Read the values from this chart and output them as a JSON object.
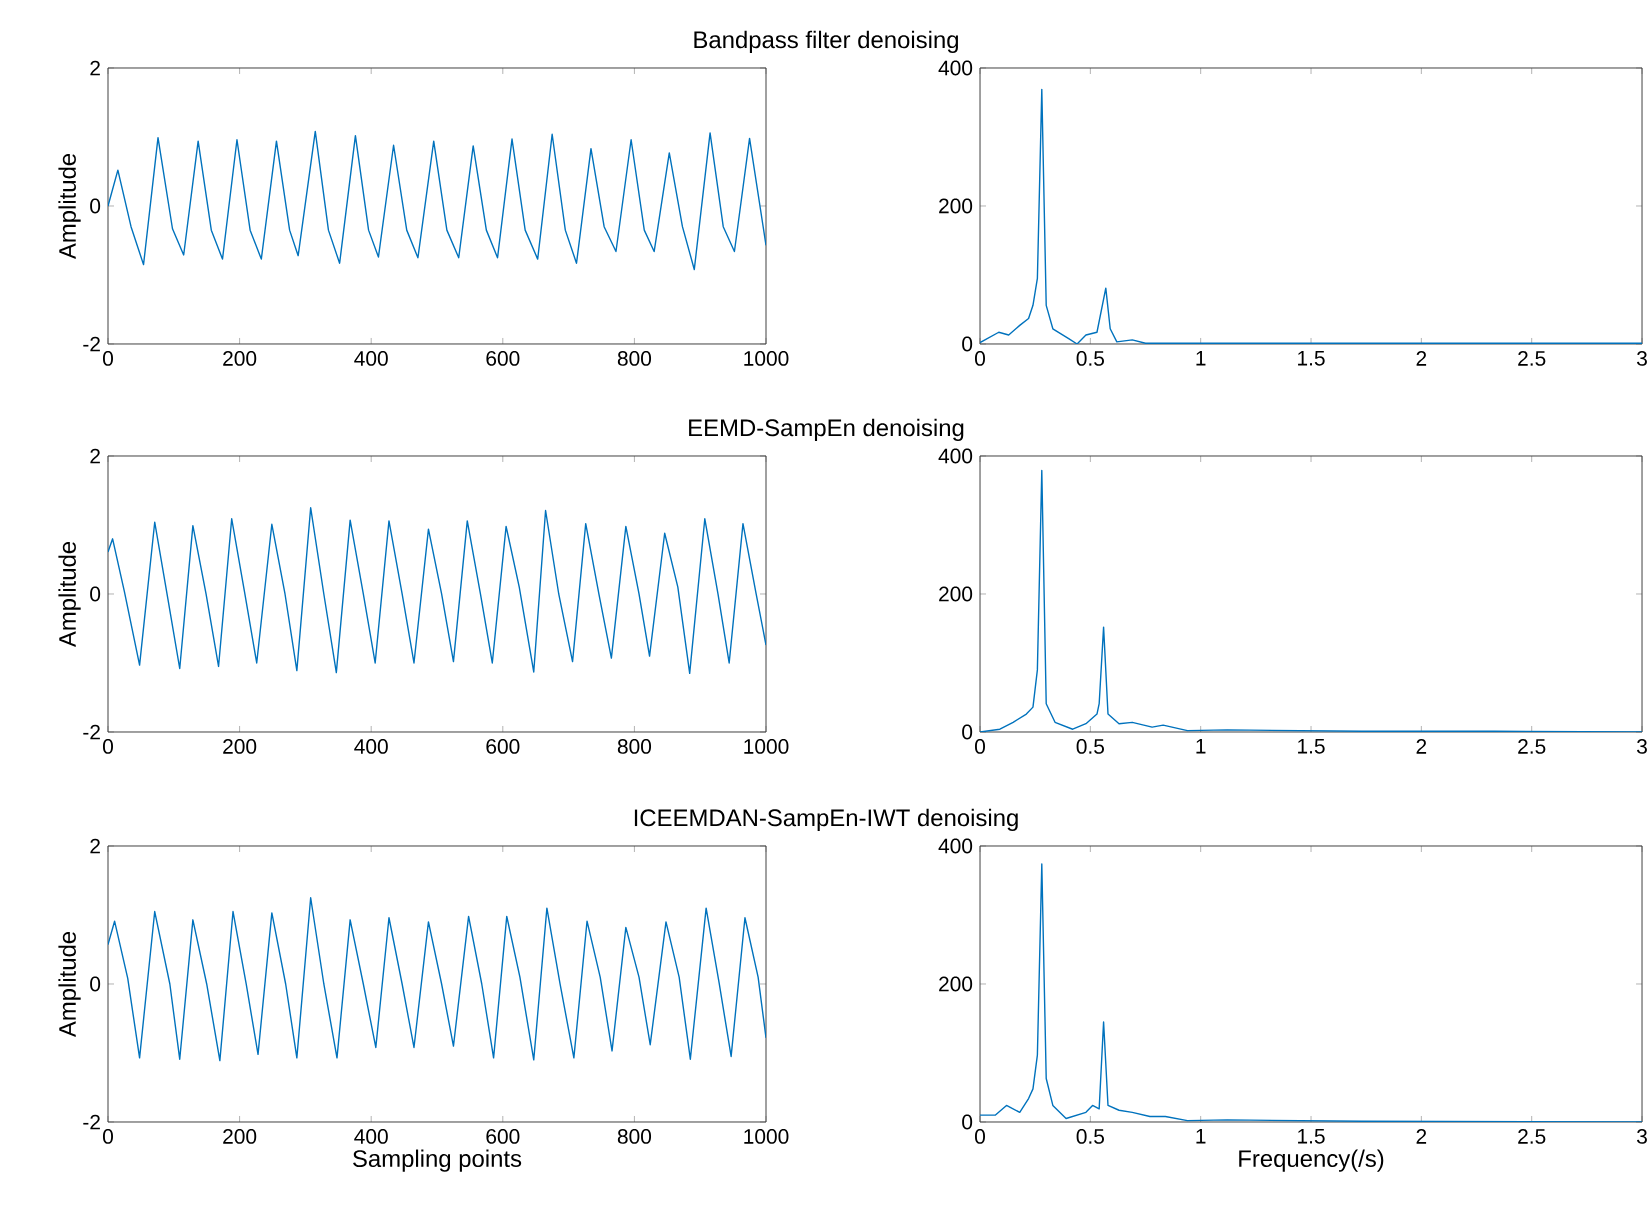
{
  "chart_data": [
    {
      "type": "line",
      "title": "Bandpass filter denoising",
      "ylabel": "Amplitude",
      "x": [
        0,
        15,
        35,
        54,
        76,
        98,
        115,
        137,
        157,
        174,
        196,
        216,
        233,
        256,
        276,
        289,
        315,
        335,
        352,
        376,
        396,
        411,
        434,
        454,
        471,
        495,
        515,
        533,
        555,
        575,
        592,
        614,
        634,
        653,
        675,
        695,
        712,
        734,
        754,
        772,
        795,
        815,
        830,
        853,
        873,
        891,
        915,
        935,
        952,
        975,
        1000
      ],
      "series": [
        {
          "color": "#0072bd",
          "values": [
            0,
            0.52,
            -0.3,
            -0.85,
            0.99,
            -0.33,
            -0.71,
            0.94,
            -0.35,
            -0.77,
            0.96,
            -0.35,
            -0.77,
            0.94,
            -0.35,
            -0.72,
            1.08,
            -0.35,
            -0.83,
            1.02,
            -0.35,
            -0.74,
            0.88,
            -0.35,
            -0.75,
            0.94,
            -0.35,
            -0.75,
            0.87,
            -0.35,
            -0.75,
            0.97,
            -0.35,
            -0.77,
            1.04,
            -0.35,
            -0.83,
            0.83,
            -0.3,
            -0.66,
            0.96,
            -0.35,
            -0.66,
            0.77,
            -0.3,
            -0.92,
            1.06,
            -0.3,
            -0.66,
            0.98,
            -0.57
          ]
        }
      ],
      "xlim": [
        0,
        1000
      ],
      "ylim": [
        -2,
        2
      ],
      "xticks": [
        0,
        200,
        400,
        600,
        800,
        1000
      ],
      "yticks": [
        -2,
        0,
        2
      ]
    },
    {
      "type": "line",
      "x": [
        0,
        0.085,
        0.13,
        0.18,
        0.22,
        0.24,
        0.26,
        0.28,
        0.3,
        0.33,
        0.4,
        0.44,
        0.48,
        0.53,
        0.57,
        0.59,
        0.62,
        0.69,
        0.75,
        1.12,
        3
      ],
      "series": [
        {
          "color": "#0072bd",
          "values": [
            2,
            17,
            13,
            27,
            37,
            56,
            95,
            369,
            56,
            22,
            8,
            0,
            13,
            17,
            81,
            22,
            3,
            6,
            1,
            1,
            1
          ]
        }
      ],
      "xlim": [
        0,
        3
      ],
      "ylim": [
        0,
        400
      ],
      "xticks": [
        0,
        0.5,
        1,
        1.5,
        2,
        2.5,
        3
      ],
      "yticks": [
        0,
        200,
        400
      ]
    },
    {
      "type": "line",
      "title": "EEMD-SampEn denoising",
      "ylabel": "Amplitude",
      "x": [
        0,
        7,
        25,
        48,
        71,
        91,
        109,
        129,
        149,
        168,
        188,
        208,
        226,
        249,
        269,
        287,
        308,
        328,
        347,
        368,
        388,
        406,
        427,
        447,
        465,
        487,
        507,
        525,
        546,
        566,
        584,
        605,
        625,
        647,
        665,
        685,
        706,
        726,
        746,
        765,
        787,
        807,
        823,
        846,
        866,
        884,
        907,
        927,
        944,
        965,
        985,
        1000
      ],
      "series": [
        {
          "color": "#0072bd",
          "values": [
            0.61,
            0.8,
            0.03,
            -1.03,
            1.04,
            -0.07,
            -1.08,
            0.99,
            0.0,
            -1.05,
            1.09,
            0.0,
            -1.0,
            1.01,
            0.0,
            -1.11,
            1.25,
            0.0,
            -1.14,
            1.07,
            0.0,
            -1.0,
            1.06,
            0.0,
            -1.0,
            0.94,
            0.0,
            -0.98,
            1.06,
            0.0,
            -1.0,
            0.98,
            0.1,
            -1.13,
            1.21,
            0.0,
            -0.98,
            1.02,
            0.0,
            -0.93,
            0.98,
            0.0,
            -0.9,
            0.88,
            0.1,
            -1.15,
            1.09,
            0.0,
            -1.0,
            1.02,
            0.0,
            -0.74
          ]
        }
      ],
      "xlim": [
        0,
        1000
      ],
      "ylim": [
        -2,
        2
      ],
      "xticks": [
        0,
        200,
        400,
        600,
        800,
        1000
      ],
      "yticks": [
        -2,
        0,
        2
      ]
    },
    {
      "type": "line",
      "x": [
        0,
        0.09,
        0.15,
        0.21,
        0.24,
        0.26,
        0.28,
        0.3,
        0.34,
        0.42,
        0.48,
        0.53,
        0.54,
        0.56,
        0.58,
        0.63,
        0.69,
        0.78,
        0.83,
        0.94,
        1.12,
        1.73,
        2.33,
        3
      ],
      "series": [
        {
          "color": "#0072bd",
          "values": [
            0,
            4,
            14,
            26,
            36,
            90,
            379,
            41,
            14,
            4,
            12,
            26,
            41,
            152,
            26,
            12,
            14,
            7,
            10,
            2,
            3,
            1,
            1,
            0
          ]
        }
      ],
      "xlim": [
        0,
        3
      ],
      "ylim": [
        0,
        400
      ],
      "xticks": [
        0,
        0.5,
        1,
        1.5,
        2,
        2.5,
        3
      ],
      "yticks": [
        0,
        200,
        400
      ]
    },
    {
      "type": "line",
      "title": "ICEEMDAN-SampEn-IWT denoising",
      "xlabel": "Sampling points",
      "ylabel": "Amplitude",
      "x": [
        0,
        10,
        30,
        48,
        71,
        94,
        109,
        129,
        150,
        170,
        190,
        210,
        228,
        249,
        270,
        287,
        308,
        328,
        348,
        368,
        388,
        407,
        427,
        447,
        465,
        487,
        507,
        525,
        548,
        568,
        586,
        606,
        626,
        647,
        667,
        687,
        708,
        728,
        748,
        766,
        787,
        807,
        824,
        848,
        868,
        885,
        909,
        929,
        947,
        968,
        988,
        1000
      ],
      "series": [
        {
          "color": "#0072bd",
          "values": [
            0.57,
            0.91,
            0.08,
            -1.07,
            1.05,
            0.0,
            -1.09,
            0.93,
            0.0,
            -1.11,
            1.05,
            0.0,
            -1.02,
            1.03,
            0.0,
            -1.07,
            1.25,
            0.0,
            -1.07,
            0.93,
            0.0,
            -0.92,
            0.96,
            0.0,
            -0.92,
            0.9,
            0.0,
            -0.9,
            0.98,
            0.0,
            -1.07,
            0.98,
            0.1,
            -1.1,
            1.1,
            0.0,
            -1.07,
            0.91,
            0.1,
            -0.97,
            0.82,
            0.1,
            -0.88,
            0.9,
            0.1,
            -1.09,
            1.1,
            0.0,
            -1.05,
            0.96,
            0.1,
            -0.78
          ]
        }
      ],
      "xlim": [
        0,
        1000
      ],
      "ylim": [
        -2,
        2
      ],
      "xticks": [
        0,
        200,
        400,
        600,
        800,
        1000
      ],
      "yticks": [
        -2,
        0,
        2
      ]
    },
    {
      "type": "line",
      "xlabel": "Frequency(/s)",
      "x": [
        0,
        0.07,
        0.12,
        0.18,
        0.22,
        0.24,
        0.26,
        0.28,
        0.3,
        0.33,
        0.39,
        0.48,
        0.51,
        0.54,
        0.56,
        0.58,
        0.63,
        0.69,
        0.77,
        0.84,
        0.94,
        1.12,
        1.73,
        3
      ],
      "series": [
        {
          "color": "#0072bd",
          "values": [
            10,
            10,
            24,
            14,
            34,
            48,
            97,
            374,
            63,
            24,
            5,
            14,
            24,
            19,
            145,
            24,
            17,
            14,
            8,
            8,
            2,
            3,
            1,
            0
          ]
        }
      ],
      "xlim": [
        0,
        3
      ],
      "ylim": [
        0,
        400
      ],
      "xticks": [
        0,
        0.5,
        1,
        1.5,
        2,
        2.5,
        3
      ],
      "yticks": [
        0,
        200,
        400
      ]
    }
  ]
}
